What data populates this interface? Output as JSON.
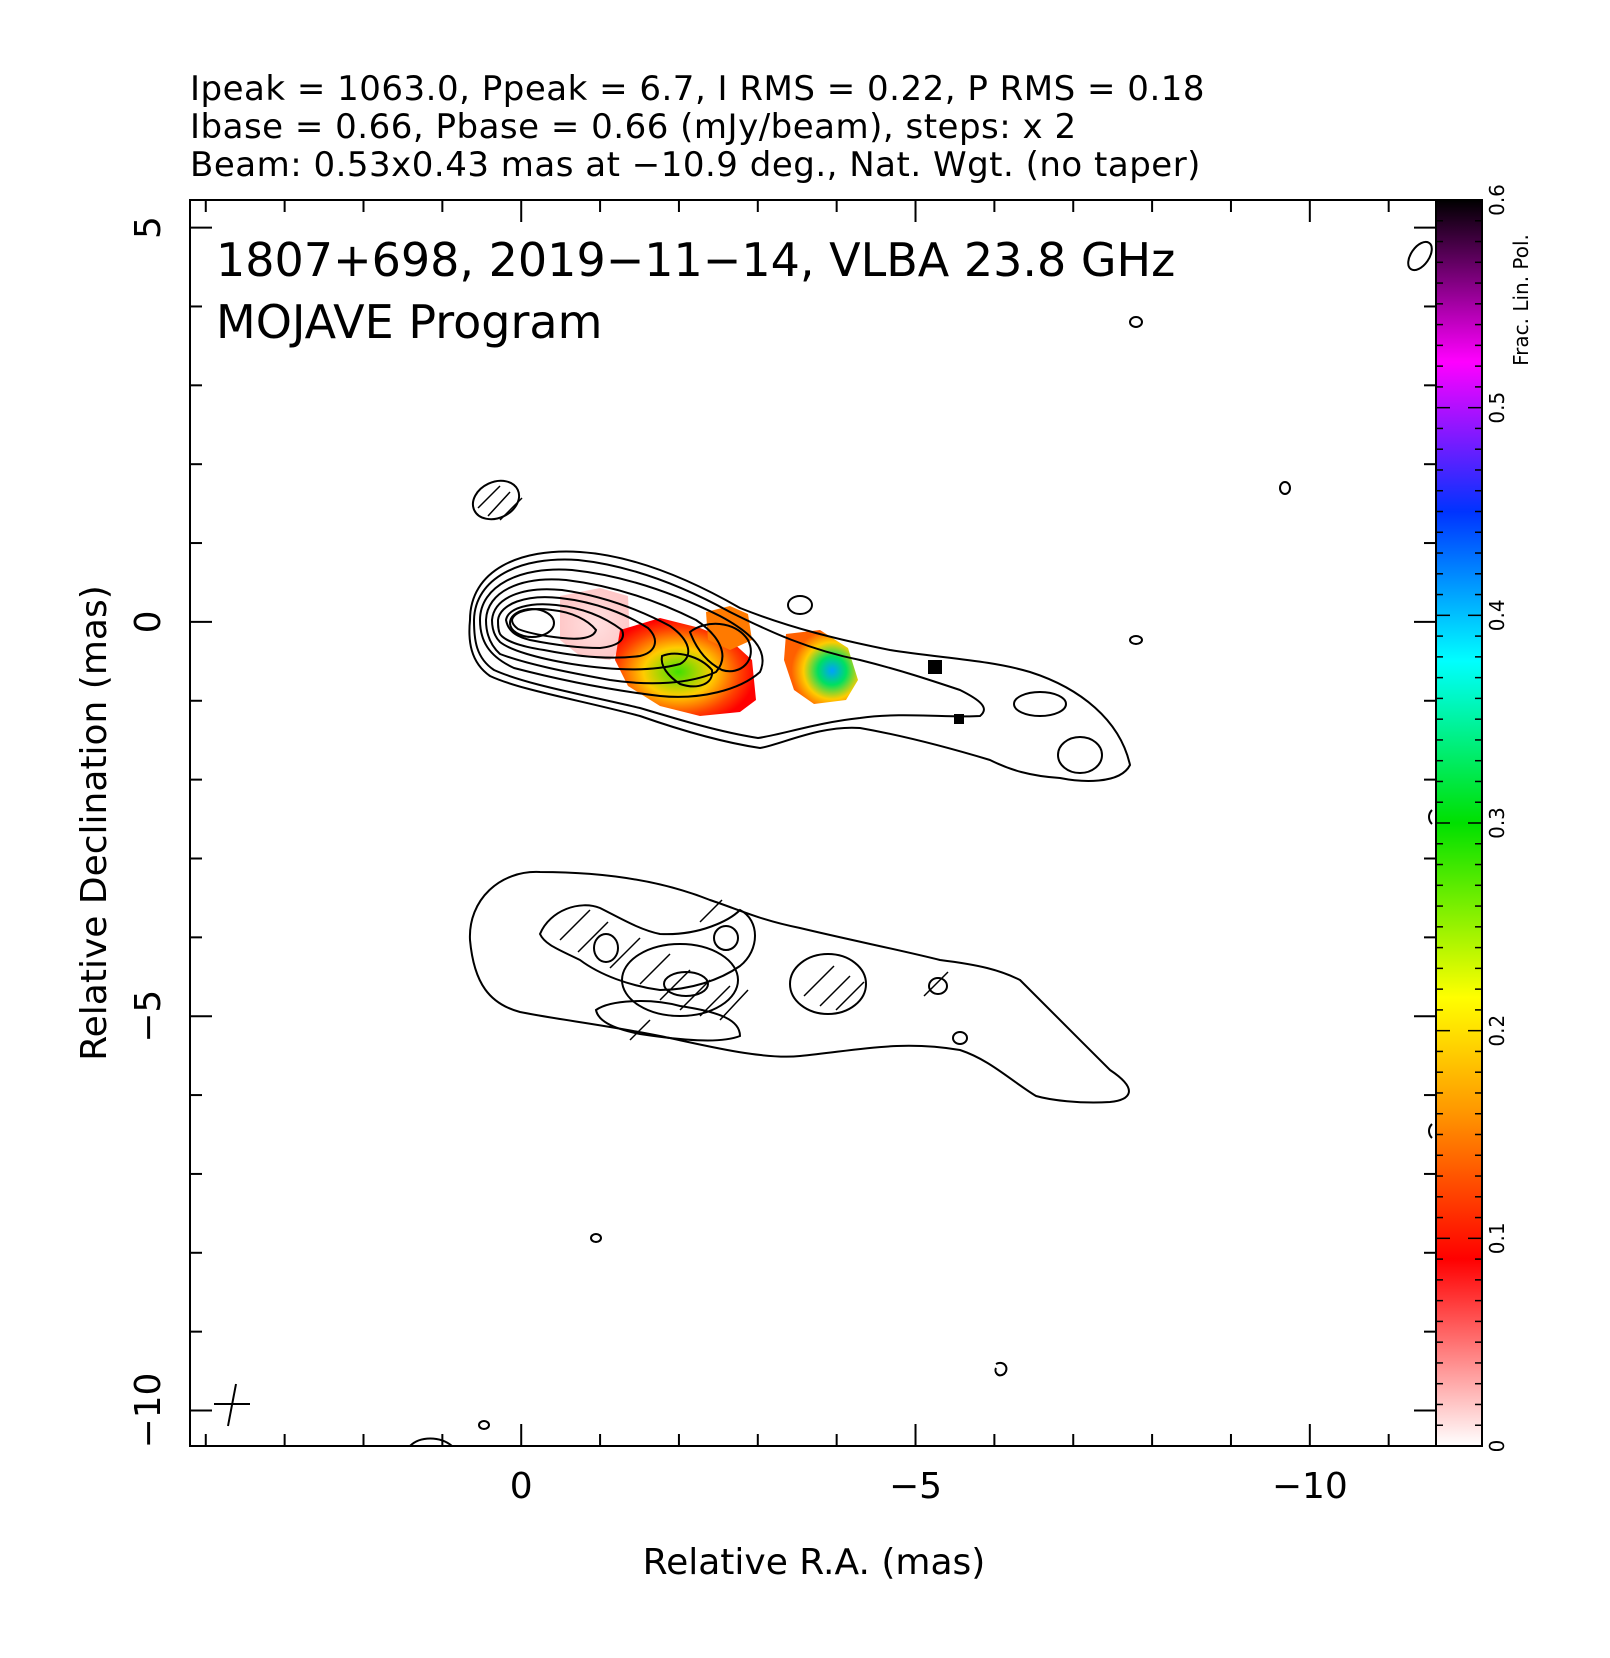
{
  "header": {
    "line1": "Ipeak = 1063.0, Ppeak = 6.7, I RMS = 0.22, P RMS = 0.18",
    "line2": "Ibase = 0.66, Pbase = 0.66 (mJy/beam), steps: x 2",
    "line3": "Beam: 0.53x0.43 mas at −10.9 deg., Nat. Wgt. (no taper)"
  },
  "chart_data": {
    "type": "heatmap",
    "source_label": "1807+698, 2019−11−14, VLBA 23.8 GHz",
    "program_label": "MOJAVE Program",
    "xlabel": "Relative R.A. (mas)",
    "ylabel": "Relative Declination (mas)",
    "xlim": [
      4.2,
      -11.6
    ],
    "ylim": [
      -10.45,
      5.35
    ],
    "x_ticks": [
      0,
      -5,
      -10
    ],
    "x_tick_labels": [
      "0",
      "−5",
      "−10"
    ],
    "y_ticks": [
      5,
      0,
      -5,
      -10
    ],
    "y_tick_labels": [
      "5",
      "0",
      "−5",
      "−10"
    ],
    "colorbar": {
      "label": "Frac. Lin. Pol.",
      "range": [
        0,
        0.6
      ],
      "ticks": [
        0,
        0.1,
        0.2,
        0.3,
        0.4,
        0.5,
        0.6
      ],
      "tick_labels": [
        "0",
        "0.1",
        "0.2",
        "0.3",
        "0.4",
        "0.5",
        "0.6"
      ]
    },
    "stokes_i_peak_position": [
      0,
      0
    ],
    "fractional_polarization_regions": [
      {
        "ra": -1.0,
        "dec": -0.1,
        "value": 0.03
      },
      {
        "ra": -2.1,
        "dec": -0.55,
        "value": 0.22
      },
      {
        "ra": -2.6,
        "dec": -0.4,
        "value": 0.15
      },
      {
        "ra": -3.9,
        "dec": -0.55,
        "value": 0.3
      }
    ],
    "panels": [
      "total intensity contours with fractional polarization color",
      "polarized intensity contours with EVPA ticks"
    ],
    "grid": false
  },
  "colors": {
    "low": "#ffffff",
    "red": "#ff0000",
    "orange": "#ff9900",
    "yellow": "#ffff00",
    "green": "#00e000",
    "cyan": "#00ffff",
    "blue": "#0033ff",
    "magenta": "#ff00ff",
    "high": "#000000"
  }
}
